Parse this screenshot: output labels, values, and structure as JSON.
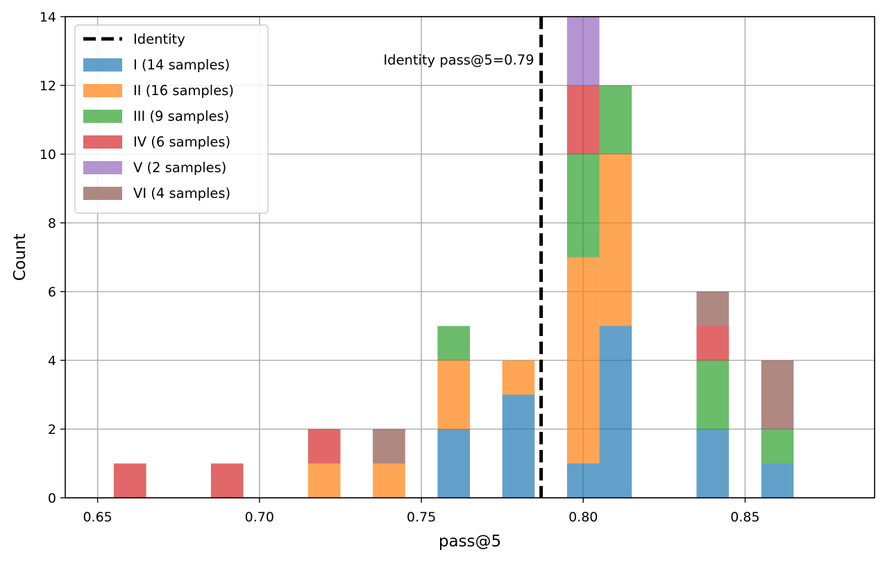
{
  "chart_data": {
    "type": "bar",
    "stacked": true,
    "histogram": true,
    "xlabel": "pass@5",
    "ylabel": "Count",
    "xlim": [
      0.64,
      0.89
    ],
    "ylim": [
      0,
      14
    ],
    "x_ticks": [
      0.65,
      0.7,
      0.75,
      0.8,
      0.85
    ],
    "x_tick_labels": [
      "0.65",
      "0.70",
      "0.75",
      "0.80",
      "0.85"
    ],
    "y_ticks": [
      0,
      2,
      4,
      6,
      8,
      10,
      12,
      14
    ],
    "y_tick_labels": [
      "0",
      "2",
      "4",
      "6",
      "8",
      "10",
      "12",
      "14"
    ],
    "grid": true,
    "legend_position": "top-left",
    "bin_width": 0.01,
    "series": [
      {
        "name": "I (14 samples)",
        "color": "#1f77b4",
        "bins": [
          [
            0.76,
            2
          ],
          [
            0.78,
            3
          ],
          [
            0.8,
            1
          ],
          [
            0.81,
            5
          ],
          [
            0.84,
            2
          ],
          [
            0.86,
            1
          ]
        ]
      },
      {
        "name": "II (16 samples)",
        "color": "#ff7f0e",
        "bins": [
          [
            0.72,
            1
          ],
          [
            0.74,
            1
          ],
          [
            0.76,
            2
          ],
          [
            0.78,
            1
          ],
          [
            0.8,
            6
          ],
          [
            0.81,
            5
          ]
        ]
      },
      {
        "name": "III (9 samples)",
        "color": "#2ca02c",
        "bins": [
          [
            0.76,
            1
          ],
          [
            0.8,
            3
          ],
          [
            0.81,
            2
          ],
          [
            0.84,
            2
          ],
          [
            0.86,
            1
          ]
        ]
      },
      {
        "name": "IV (6 samples)",
        "color": "#d62728",
        "bins": [
          [
            0.66,
            1
          ],
          [
            0.69,
            1
          ],
          [
            0.72,
            1
          ],
          [
            0.8,
            2
          ],
          [
            0.84,
            1
          ]
        ]
      },
      {
        "name": "V (2 samples)",
        "color": "#9467bd",
        "bins": [
          [
            0.8,
            2
          ]
        ]
      },
      {
        "name": "VI (4 samples)",
        "color": "#8c564b",
        "bins": [
          [
            0.74,
            1
          ],
          [
            0.84,
            1
          ],
          [
            0.86,
            2
          ]
        ]
      }
    ],
    "reference_line": {
      "x": 0.787,
      "legend_label": "Identity",
      "annotation": "Identity pass@5=0.79",
      "color": "#000000",
      "style": "dashed"
    }
  }
}
